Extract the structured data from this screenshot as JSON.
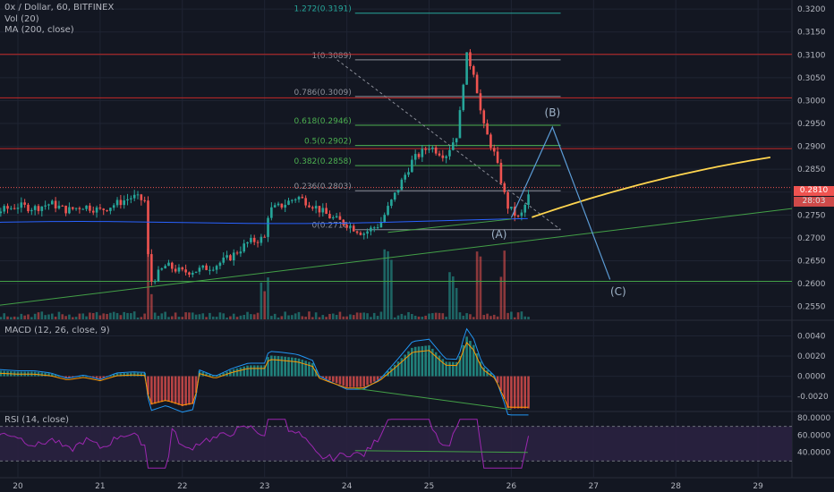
{
  "legend": {
    "symbol": "0x / Dollar, 60, BITFINEX",
    "vol": "Vol (20)",
    "ma": "MA (200, close)",
    "macd": "MACD (12, 26, close, 9)",
    "rsi": "RSI (14, close)"
  },
  "current_price": {
    "value": "0.2810",
    "countdown": "28:03"
  },
  "colors": {
    "background": "#131722",
    "up": "#26a69a",
    "down": "#ef5350",
    "grid": "#1f2433",
    "fib_grey": "#8c8f99",
    "fib_green": "#4caf50",
    "fib_teal": "#26a69a",
    "resistance_red": "#c62828",
    "trend_green": "#43a047",
    "yellow_trend": "#ffd54f",
    "wave_projection": "#5b9bd5",
    "ma_line": "#2962ff",
    "macd_line": "#2196f3",
    "signal_line": "#ff9800",
    "rsi_line": "#9c27b0",
    "rsi_band": "#2a2140"
  },
  "chart_data": [
    {
      "type": "line",
      "name": "price",
      "x_ticks": [
        "20",
        "21",
        "22",
        "23",
        "24",
        "25",
        "26",
        "27",
        "28",
        "29"
      ],
      "ylim": [
        0.252,
        0.321
      ],
      "y_ticks": [
        "0.2550",
        "0.2600",
        "0.2650",
        "0.2700",
        "0.2750",
        "0.2800",
        "0.2850",
        "0.2900",
        "0.2950",
        "0.3000",
        "0.3050",
        "0.3100",
        "0.3150",
        "0.3200"
      ],
      "close_path": [
        [
          19.0,
          0.2705
        ],
        [
          19.2,
          0.273
        ],
        [
          19.4,
          0.2745
        ],
        [
          19.6,
          0.274
        ],
        [
          19.8,
          0.276
        ],
        [
          20.0,
          0.277
        ],
        [
          20.2,
          0.2765
        ],
        [
          20.4,
          0.2775
        ],
        [
          20.6,
          0.276
        ],
        [
          20.8,
          0.277
        ],
        [
          21.0,
          0.276
        ],
        [
          21.2,
          0.2775
        ],
        [
          21.4,
          0.279
        ],
        [
          21.55,
          0.278
        ],
        [
          21.6,
          0.26
        ],
        [
          21.8,
          0.264
        ],
        [
          22.0,
          0.2625
        ],
        [
          22.2,
          0.263
        ],
        [
          22.4,
          0.264
        ],
        [
          22.6,
          0.266
        ],
        [
          22.8,
          0.269
        ],
        [
          23.0,
          0.27
        ],
        [
          23.05,
          0.276
        ],
        [
          23.2,
          0.277
        ],
        [
          23.4,
          0.279
        ],
        [
          23.6,
          0.277
        ],
        [
          23.8,
          0.2745
        ],
        [
          24.0,
          0.273
        ],
        [
          24.2,
          0.271
        ],
        [
          24.4,
          0.273
        ],
        [
          24.6,
          0.28
        ],
        [
          24.8,
          0.287
        ],
        [
          25.0,
          0.29
        ],
        [
          25.2,
          0.288
        ],
        [
          25.35,
          0.293
        ],
        [
          25.45,
          0.31
        ],
        [
          25.55,
          0.306
        ],
        [
          25.65,
          0.295
        ],
        [
          25.8,
          0.288
        ],
        [
          25.95,
          0.277
        ],
        [
          26.1,
          0.274
        ],
        [
          26.25,
          0.281
        ]
      ],
      "volume_spikes": [
        21.6,
        23.0,
        24.5,
        25.3,
        25.6,
        25.9
      ],
      "fib_levels": [
        {
          "label": "1.272(0.3191)",
          "value": 0.3191,
          "color": "#26a69a"
        },
        {
          "label": "1(0.3089)",
          "value": 0.3089,
          "color": "#8c8f99"
        },
        {
          "label": "0.786(0.3009)",
          "value": 0.3009,
          "color": "#8c8f99"
        },
        {
          "label": "0.618(0.2946)",
          "value": 0.2946,
          "color": "#4caf50"
        },
        {
          "label": "0.5(0.2902)",
          "value": 0.2902,
          "color": "#4caf50"
        },
        {
          "label": "0.382(0.2858)",
          "value": 0.2858,
          "color": "#4caf50"
        },
        {
          "label": "0.236(0.2803)",
          "value": 0.2803,
          "color": "#8c8f99"
        },
        {
          "label": "0(0.2718)",
          "value": 0.2718,
          "color": "#8c8f99"
        }
      ],
      "horizontal_lines": [
        {
          "value": 0.3101,
          "color": "#c62828"
        },
        {
          "value": 0.3006,
          "color": "#c62828"
        },
        {
          "value": 0.2895,
          "color": "#c62828"
        },
        {
          "value": 0.2605,
          "color": "#43a047"
        }
      ],
      "wave_labels": [
        {
          "label": "(A)",
          "x": 25.85,
          "y": 0.27
        },
        {
          "label": "(B)",
          "x": 26.5,
          "y": 0.2966
        },
        {
          "label": "(C)",
          "x": 27.3,
          "y": 0.2575
        }
      ]
    },
    {
      "type": "line",
      "name": "MACD",
      "ylim": [
        -0.0035,
        0.0052
      ],
      "y_ticks": [
        "0.0040",
        "0.0020",
        "0.0000",
        "-0.0020"
      ]
    },
    {
      "type": "line",
      "name": "RSI",
      "ylim": [
        15,
        85
      ],
      "y_ticks": [
        "80.0000",
        "60.0000",
        "40.0000"
      ]
    }
  ]
}
